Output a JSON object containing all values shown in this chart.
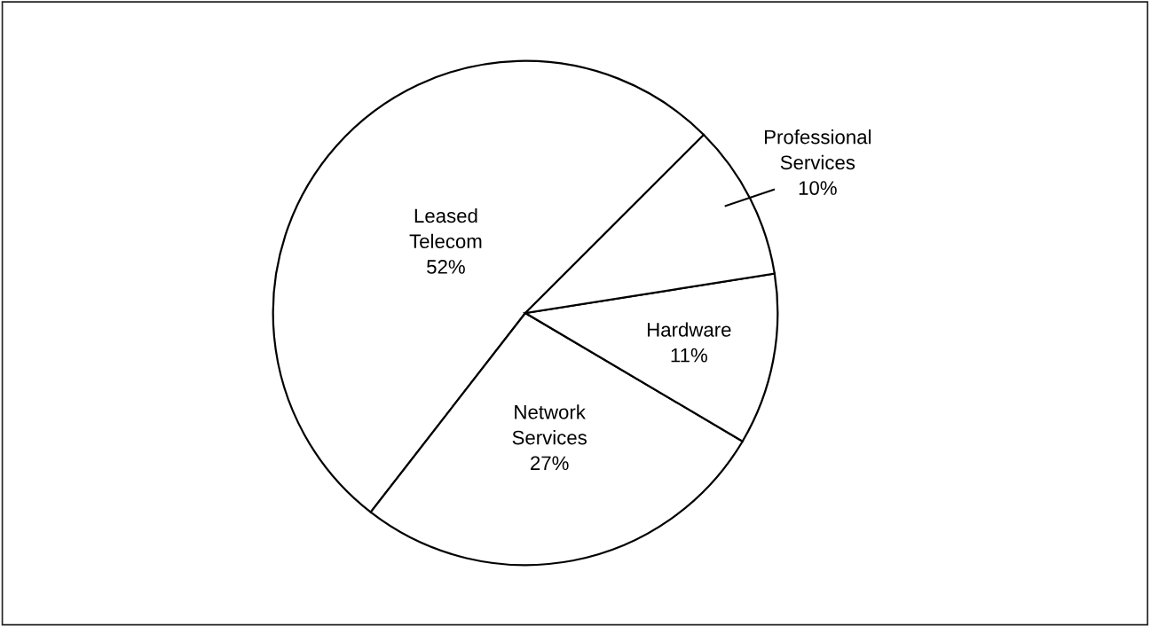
{
  "chart_data": {
    "type": "pie",
    "categories": [
      "Leased\nTelecom",
      "Network\nServices",
      "Hardware",
      "Professional\nServices"
    ],
    "values": [
      52,
      27,
      11,
      10
    ],
    "value_labels": [
      "52%",
      "27%",
      "11%",
      "10%"
    ],
    "colors": [
      "#ffffff",
      "#ffffff",
      "#ffffff",
      "#ffffff"
    ],
    "legend": false
  }
}
